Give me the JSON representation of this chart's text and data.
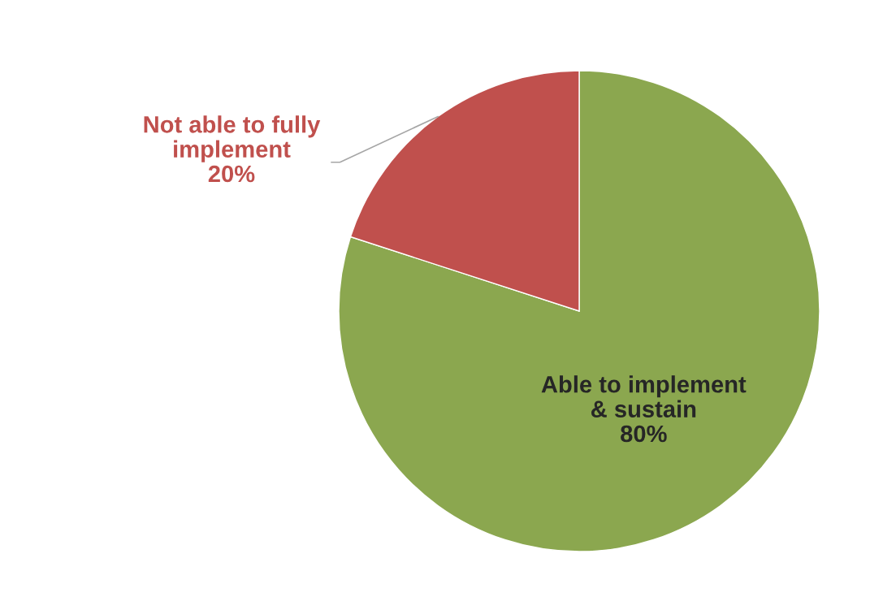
{
  "chart_data": {
    "type": "pie",
    "categories": [
      "Able to implement\n& sustain",
      "Not able to fully\nimplement"
    ],
    "values": [
      80,
      20
    ],
    "colors": [
      "#8ba74f",
      "#c0504d"
    ],
    "value_labels": [
      "80%",
      "20%"
    ],
    "legend": false
  }
}
